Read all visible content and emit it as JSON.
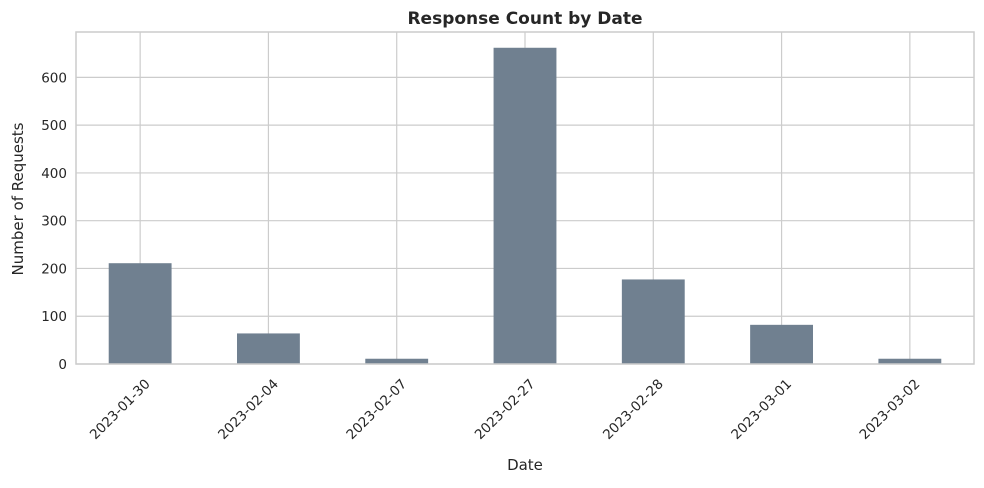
{
  "chart_data": {
    "type": "bar",
    "title": "Response Count by Date",
    "xlabel": "Date",
    "ylabel": "Number of Requests",
    "categories": [
      "2023-01-30",
      "2023-02-04",
      "2023-02-07",
      "2023-02-27",
      "2023-02-28",
      "2023-03-01",
      "2023-03-02"
    ],
    "values": [
      211,
      64,
      11,
      662,
      177,
      82,
      11
    ],
    "ylim": [
      0,
      695
    ],
    "yticks": [
      0,
      100,
      200,
      300,
      400,
      500,
      600
    ],
    "grid": true,
    "legend": "none",
    "colors": {
      "bar": "#708090",
      "grid": "#cccccc",
      "axis": "#cccccc",
      "background": "#ffffff"
    }
  }
}
